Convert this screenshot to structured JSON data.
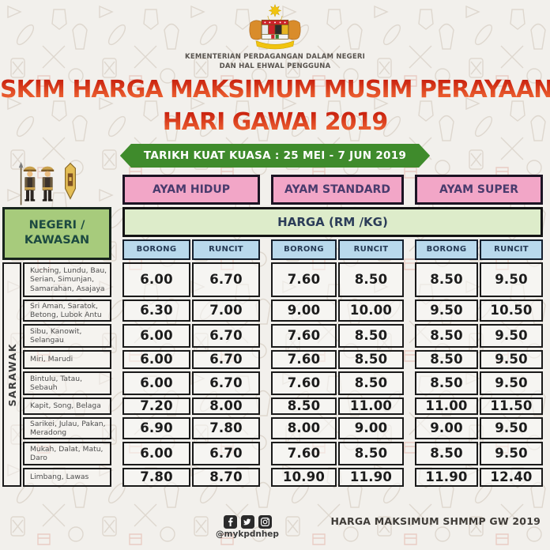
{
  "header": {
    "ministry_line1": "KEMENTERIAN PERDAGANGAN DALAM NEGERI",
    "ministry_line2": "DAN HAL EHWAL PENGGUNA",
    "title_line1": "SKIM HARGA MAKSIMUM MUSIM PERAYAAN",
    "title_line2": "HARI GAWAI 2019",
    "effective_date_banner": "TARIKH KUAT KUASA : 25 MEI - 7 JUN 2019"
  },
  "table": {
    "region_header": "NEGERI / KAWASAN",
    "region_group": "SARAWAK",
    "price_header": "HARGA (RM /KG)",
    "categories": [
      "AYAM HIDUP",
      "AYAM STANDARD",
      "AYAM SUPER"
    ],
    "price_types": [
      "BORONG",
      "RUNCIT"
    ],
    "rows": [
      {
        "area": "Kuching, Lundu, Bau, Serian, Simunjan, Samarahan, Asajaya",
        "hidup": [
          "6.00",
          "6.70"
        ],
        "standard": [
          "7.60",
          "8.50"
        ],
        "super": [
          "8.50",
          "9.50"
        ]
      },
      {
        "area": "Sri Aman, Saratok, Betong, Lubok Antu",
        "hidup": [
          "6.30",
          "7.00"
        ],
        "standard": [
          "9.00",
          "10.00"
        ],
        "super": [
          "9.50",
          "10.50"
        ]
      },
      {
        "area": "Sibu, Kanowit, Selangau",
        "hidup": [
          "6.00",
          "6.70"
        ],
        "standard": [
          "7.60",
          "8.50"
        ],
        "super": [
          "8.50",
          "9.50"
        ]
      },
      {
        "area": "Miri, Marudi",
        "hidup": [
          "6.00",
          "6.70"
        ],
        "standard": [
          "7.60",
          "8.50"
        ],
        "super": [
          "8.50",
          "9.50"
        ]
      },
      {
        "area": "Bintulu, Tatau, Sebauh",
        "hidup": [
          "6.00",
          "6.70"
        ],
        "standard": [
          "7.60",
          "8.50"
        ],
        "super": [
          "8.50",
          "9.50"
        ]
      },
      {
        "area": "Kapit, Song, Belaga",
        "hidup": [
          "7.20",
          "8.00"
        ],
        "standard": [
          "8.50",
          "11.00"
        ],
        "super": [
          "11.00",
          "11.50"
        ]
      },
      {
        "area": "Sarikei, Julau, Pakan, Meradong",
        "hidup": [
          "6.90",
          "7.80"
        ],
        "standard": [
          "8.00",
          "9.00"
        ],
        "super": [
          "9.00",
          "9.50"
        ]
      },
      {
        "area": "Mukah, Dalat, Matu, Daro",
        "hidup": [
          "6.00",
          "6.70"
        ],
        "standard": [
          "7.60",
          "8.50"
        ],
        "super": [
          "8.50",
          "9.50"
        ]
      },
      {
        "area": "Limbang, Lawas",
        "hidup": [
          "7.80",
          "8.70"
        ],
        "standard": [
          "10.90",
          "11.90"
        ],
        "super": [
          "11.90",
          "12.40"
        ]
      }
    ]
  },
  "footer": {
    "social_handle": "@mykpdnhep",
    "social_icons": [
      "facebook-icon",
      "twitter-icon",
      "instagram-icon"
    ],
    "note": "HARGA MAKSIMUM SHMMP GW 2019"
  },
  "colors": {
    "background": "#f2f0ec",
    "title_red_top": "#c9220f",
    "title_red_bottom": "#f46f38",
    "ribbon_green": "#3f8b2c",
    "category_pink": "#f2a6c7",
    "price_type_blue": "#b9d9ec",
    "price_header_green": "#ddecca",
    "region_green": "#a7cb7c",
    "border_dark": "#1a1a1a"
  }
}
